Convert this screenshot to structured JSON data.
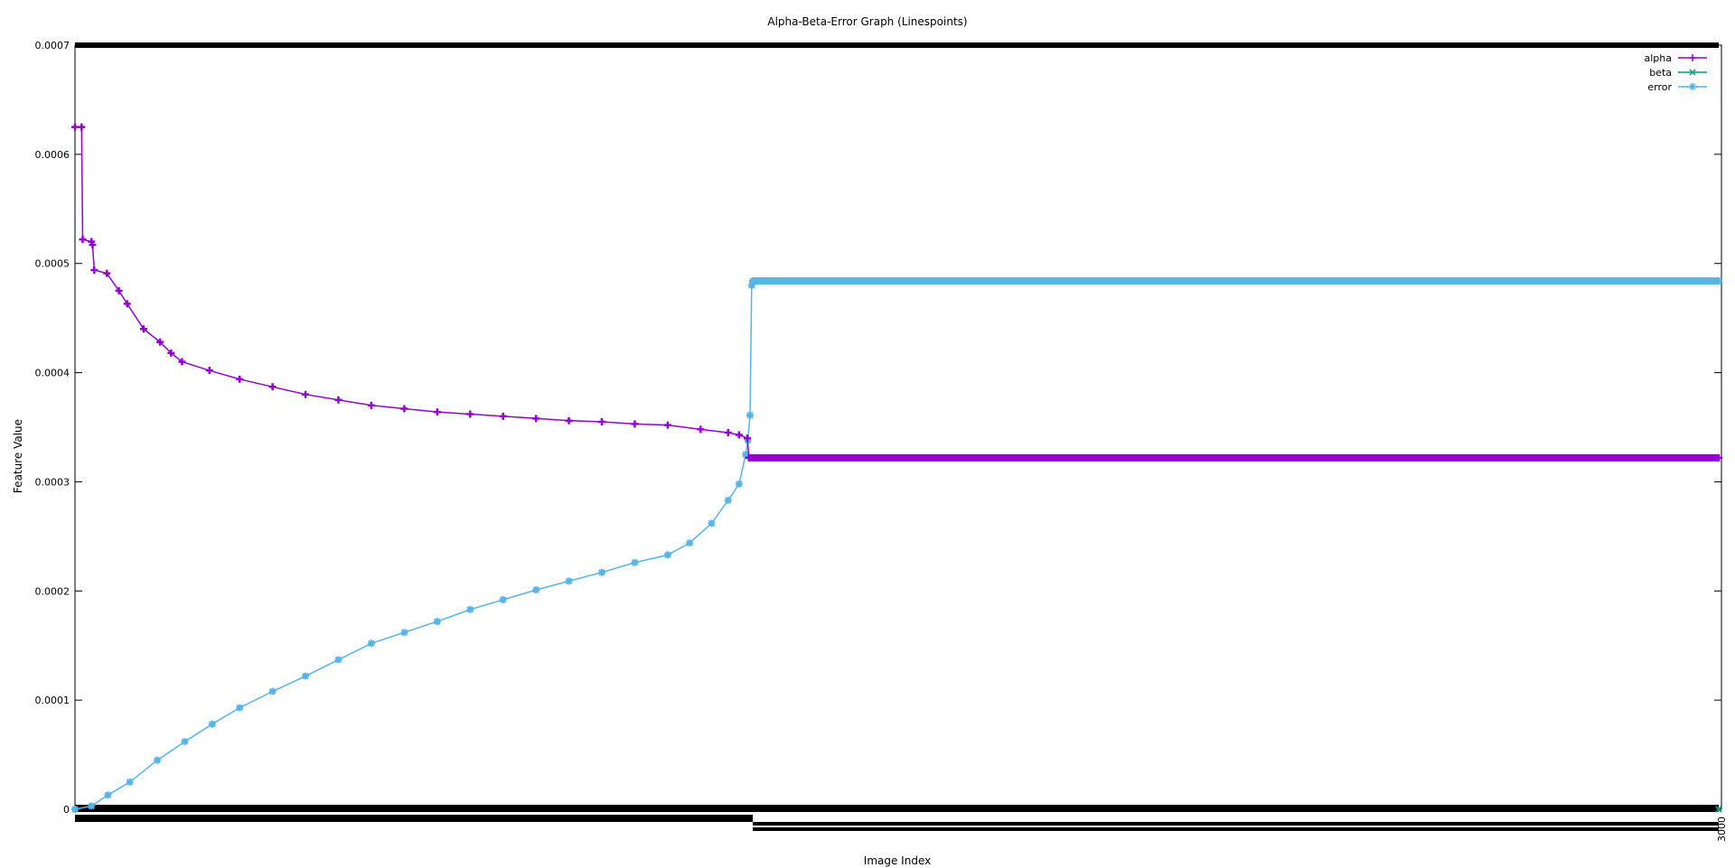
{
  "chart_data": {
    "type": "line",
    "title": "Alpha-Beta-Error Graph (Linespoints)",
    "xlabel": "Image Index",
    "ylabel": "Feature Value",
    "xlim": [
      0,
      3000
    ],
    "ylim": [
      0,
      0.0007
    ],
    "x_ticks": [
      3000
    ],
    "y_ticks": [
      0,
      0.0001,
      0.0002,
      0.0003,
      0.0004,
      0.0005,
      0.0006,
      0.0007
    ],
    "y_tick_labels": [
      "0",
      "0.0001",
      "0.0002",
      "0.0003",
      "0.0004",
      "0.0005",
      "0.0006",
      "0.0007"
    ],
    "legend_position": "top-right",
    "grid": false,
    "series": [
      {
        "name": "alpha",
        "color": "#9400d3",
        "marker": "plus",
        "x": [
          0,
          12,
          14,
          30,
          32,
          35,
          58,
          80,
          95,
          125,
          155,
          175,
          195,
          245,
          300,
          360,
          420,
          480,
          540,
          600,
          660,
          720,
          780,
          840,
          900,
          960,
          1020,
          1080,
          1140,
          1190,
          1210,
          1225,
          1228,
          2995
        ],
        "values": [
          0.000625,
          0.000625,
          0.000522,
          0.00052,
          0.000517,
          0.000494,
          0.000491,
          0.000475,
          0.000463,
          0.00044,
          0.000428,
          0.000418,
          0.00041,
          0.000402,
          0.000394,
          0.000387,
          0.00038,
          0.000375,
          0.00037,
          0.000367,
          0.000364,
          0.000362,
          0.00036,
          0.000358,
          0.000356,
          0.000355,
          0.000353,
          0.000352,
          0.000348,
          0.000345,
          0.000343,
          0.00034,
          0.000322,
          0.000322
        ]
      },
      {
        "name": "beta",
        "color": "#009e73",
        "marker": "cross",
        "x": [
          0,
          2995
        ],
        "values": [
          0,
          0
        ]
      },
      {
        "name": "error",
        "color": "#56b4e9",
        "marker": "star",
        "x": [
          0,
          30,
          60,
          100,
          150,
          200,
          250,
          300,
          360,
          420,
          480,
          540,
          600,
          660,
          720,
          780,
          840,
          900,
          960,
          1020,
          1080,
          1120,
          1160,
          1190,
          1210,
          1222,
          1226,
          1230,
          1233,
          1235,
          2995
        ],
        "values": [
          0,
          3e-06,
          1.3e-05,
          2.5e-05,
          4.5e-05,
          6.2e-05,
          7.8e-05,
          9.3e-05,
          0.000108,
          0.000122,
          0.000137,
          0.000152,
          0.000162,
          0.000172,
          0.000183,
          0.000192,
          0.000201,
          0.000209,
          0.000217,
          0.000226,
          0.000233,
          0.000244,
          0.000262,
          0.000283,
          0.000298,
          0.000325,
          0.000338,
          0.000361,
          0.00048,
          0.000484,
          0.000484
        ]
      }
    ]
  }
}
